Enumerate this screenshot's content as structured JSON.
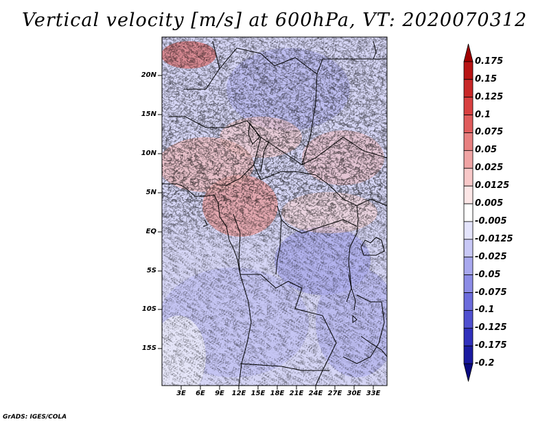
{
  "title": "Vertical velocity [m/s] at 600hPa, VT: 2020070312",
  "credit": "GrADS: IGES/COLA",
  "map": {
    "lat_labels": [
      "20N",
      "15N",
      "10N",
      "5N",
      "EQ",
      "5S",
      "10S",
      "15S"
    ],
    "lon_labels": [
      "3E",
      "6E",
      "9E",
      "12E",
      "15E",
      "18E",
      "21E",
      "24E",
      "27E",
      "30E",
      "33E"
    ]
  },
  "colorbar": {
    "labels": [
      "0.175",
      "0.15",
      "0.125",
      "0.1",
      "0.075",
      "0.05",
      "0.025",
      "0.0125",
      "0.005",
      "-0.005",
      "-0.0125",
      "-0.025",
      "-0.05",
      "-0.075",
      "-0.1",
      "-0.125",
      "-0.175",
      "-0.2"
    ],
    "colors": [
      "#a00000",
      "#b81414",
      "#c82828",
      "#d84040",
      "#e05c5c",
      "#e88080",
      "#f0a4a4",
      "#f8c8c8",
      "#fce6e6",
      "#ffffff",
      "#e4e4fc",
      "#c8c8f6",
      "#a8a8ee",
      "#8c8ce6",
      "#6c6cdc",
      "#5050d0",
      "#3030bc",
      "#1a1aa0",
      "#0a0a80"
    ]
  }
}
